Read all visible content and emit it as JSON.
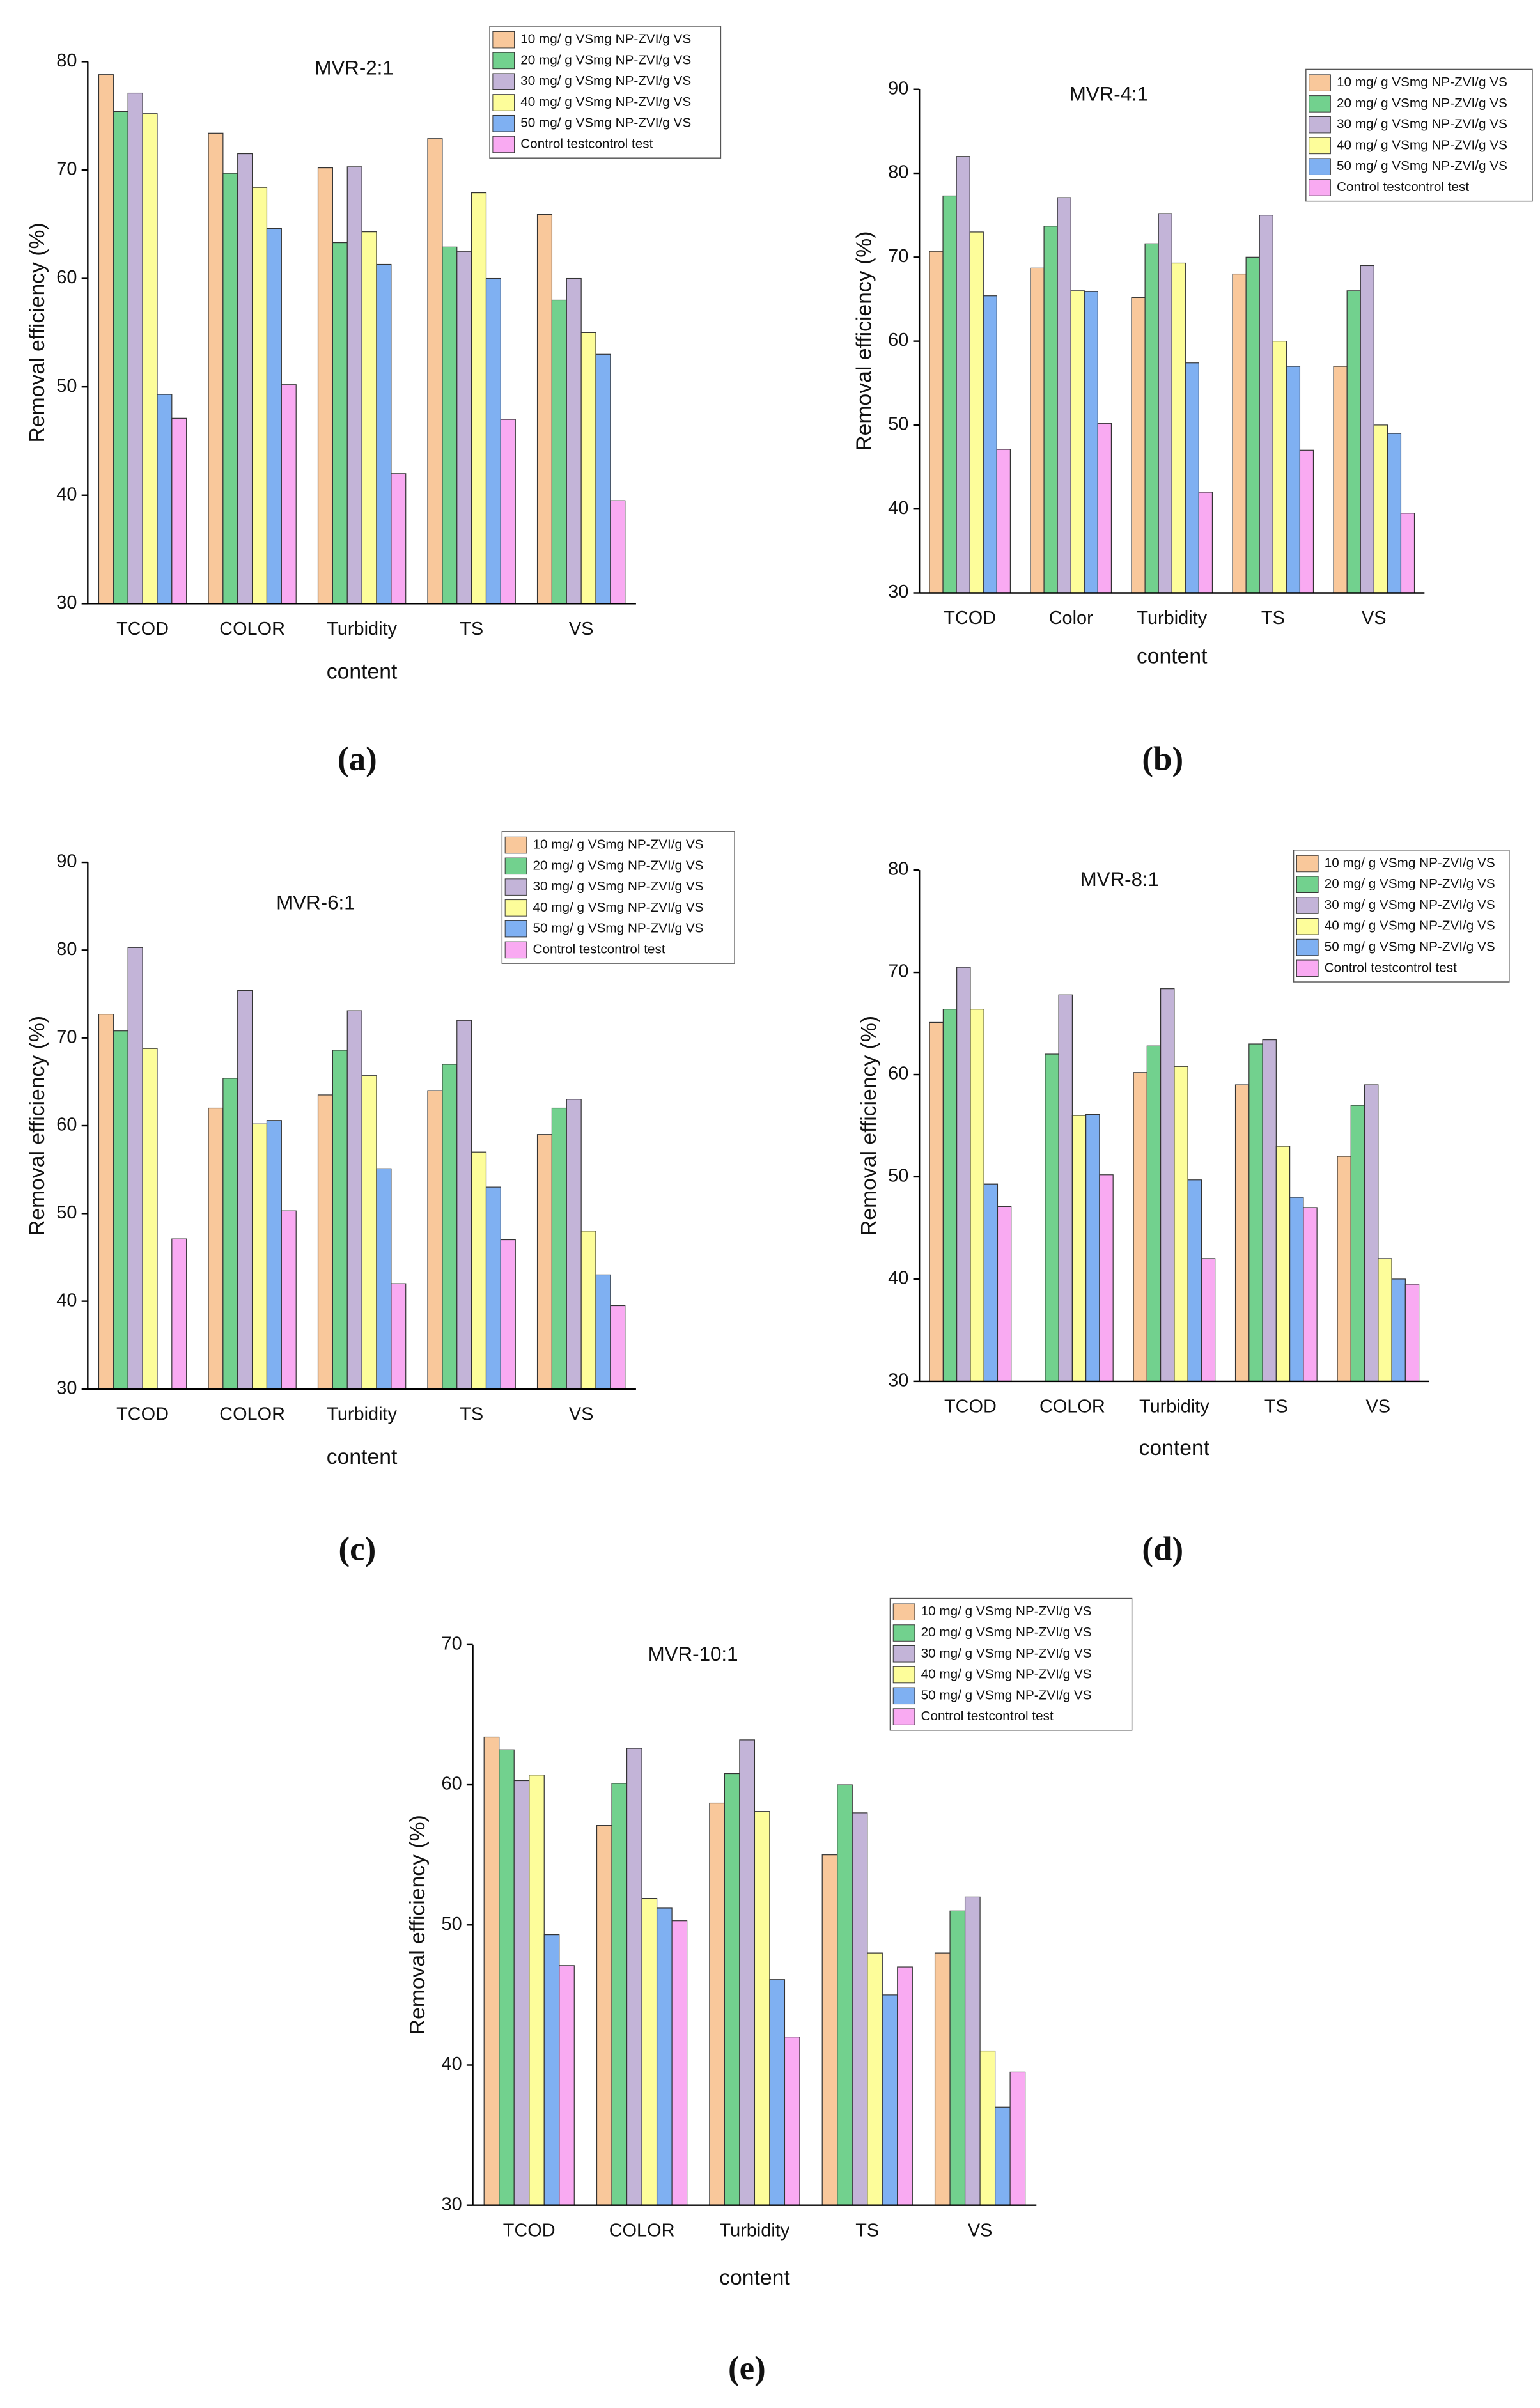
{
  "chart_data": [
    {
      "type": "bar",
      "title": "MVR-2:1",
      "caption": "(a)",
      "x_label": "content",
      "y_label": "Removal efficiency (%)",
      "categories": [
        "TCOD",
        "COLOR",
        "Turbidity",
        "TS",
        "VS"
      ],
      "ylim": [
        30,
        80
      ],
      "yticks": [
        30,
        40,
        50,
        60,
        70,
        80
      ],
      "series": [
        {
          "name": "10 mg/ g VSmg NP-ZVI/g VS",
          "color": "#f9c89b",
          "values": [
            78.8,
            73.4,
            70.2,
            72.9,
            65.9
          ]
        },
        {
          "name": "20 mg/ g VSmg NP-ZVI/g VS",
          "color": "#72d18e",
          "values": [
            75.4,
            69.7,
            63.3,
            62.9,
            58
          ]
        },
        {
          "name": "30 mg/ g VSmg NP-ZVI/g VS",
          "color": "#c3b4d8",
          "values": [
            77.1,
            71.5,
            70.3,
            62.5,
            60
          ]
        },
        {
          "name": "40 mg/ g VSmg NP-ZVI/g VS",
          "color": "#fdfd9a",
          "values": [
            75.2,
            68.4,
            64.3,
            67.9,
            55
          ]
        },
        {
          "name": "50 mg/ g VSmg NP-ZVI/g VS",
          "color": "#7fb0f2",
          "values": [
            49.3,
            64.6,
            61.3,
            60,
            53
          ]
        },
        {
          "name": "Control testcontrol test",
          "color": "#f9aaf2",
          "values": [
            47.1,
            50.2,
            42,
            47,
            39.5
          ]
        }
      ]
    },
    {
      "type": "bar",
      "title": "MVR-4:1",
      "caption": "(b)",
      "x_label": "content",
      "y_label": "Removal efficiency (%)",
      "categories": [
        "TCOD",
        "Color",
        "Turbidity",
        "TS",
        "VS"
      ],
      "ylim": [
        30,
        90
      ],
      "yticks": [
        30,
        40,
        50,
        60,
        70,
        80,
        90
      ],
      "series": [
        {
          "name": "10 mg/ g VSmg NP-ZVI/g VS",
          "color": "#f9c89b",
          "values": [
            70.7,
            68.7,
            65.2,
            68,
            57
          ]
        },
        {
          "name": "20 mg/ g VSmg NP-ZVI/g VS",
          "color": "#72d18e",
          "values": [
            77.3,
            73.7,
            71.6,
            70,
            66
          ]
        },
        {
          "name": "30 mg/ g VSmg NP-ZVI/g VS",
          "color": "#c3b4d8",
          "values": [
            82,
            77.1,
            75.2,
            75,
            69
          ]
        },
        {
          "name": "40 mg/ g VSmg NP-ZVI/g VS",
          "color": "#fdfd9a",
          "values": [
            73,
            66,
            69.3,
            60,
            50
          ]
        },
        {
          "name": "50 mg/ g VSmg NP-ZVI/g VS",
          "color": "#7fb0f2",
          "values": [
            65.4,
            65.9,
            57.4,
            57,
            49
          ]
        },
        {
          "name": "Control testcontrol test",
          "color": "#f9aaf2",
          "values": [
            47.1,
            50.2,
            42,
            47,
            39.5
          ]
        }
      ]
    },
    {
      "type": "bar",
      "title": "MVR-6:1",
      "caption": "(c)",
      "x_label": "content",
      "y_label": "Removal efficiency (%)",
      "categories": [
        "TCOD",
        "COLOR",
        "Turbidity",
        "TS",
        "VS"
      ],
      "ylim": [
        30,
        90
      ],
      "yticks": [
        30,
        40,
        50,
        60,
        70,
        80,
        90
      ],
      "series": [
        {
          "name": "10 mg/ g VSmg NP-ZVI/g VS",
          "color": "#f9c89b",
          "values": [
            72.7,
            62,
            63.5,
            64,
            59
          ]
        },
        {
          "name": "20 mg/ g VSmg NP-ZVI/g VS",
          "color": "#72d18e",
          "values": [
            70.8,
            65.4,
            68.6,
            67,
            62
          ]
        },
        {
          "name": "30 mg/ g VSmg NP-ZVI/g VS",
          "color": "#c3b4d8",
          "values": [
            80.3,
            75.4,
            73.1,
            72,
            63
          ]
        },
        {
          "name": "40 mg/ g VSmg NP-ZVI/g VS",
          "color": "#fdfd9a",
          "values": [
            68.8,
            60.2,
            65.7,
            57,
            48
          ]
        },
        {
          "name": "50 mg/ g VSmg NP-ZVI/g VS",
          "color": "#7fb0f2",
          "values": [
            null,
            60.6,
            55.1,
            53,
            43
          ]
        },
        {
          "name": "Control testcontrol test",
          "color": "#f9aaf2",
          "values": [
            47.1,
            50.3,
            42,
            47,
            39.5
          ]
        }
      ]
    },
    {
      "type": "bar",
      "title": "MVR-8:1",
      "caption": "(d)",
      "x_label": "content",
      "y_label": "Removal efficiency (%)",
      "categories": [
        "TCOD",
        "COLOR",
        "Turbidity",
        "TS",
        "VS"
      ],
      "ylim": [
        30,
        80
      ],
      "yticks": [
        30,
        40,
        50,
        60,
        70,
        80
      ],
      "series": [
        {
          "name": "10 mg/ g VSmg NP-ZVI/g VS",
          "color": "#f9c89b",
          "values": [
            65.1,
            null,
            60.2,
            59,
            52
          ]
        },
        {
          "name": "20 mg/ g VSmg NP-ZVI/g VS",
          "color": "#72d18e",
          "values": [
            66.4,
            62,
            62.8,
            63,
            57
          ]
        },
        {
          "name": "30 mg/ g VSmg NP-ZVI/g VS",
          "color": "#c3b4d8",
          "values": [
            70.5,
            67.8,
            68.4,
            63.4,
            59
          ]
        },
        {
          "name": "40 mg/ g VSmg NP-ZVI/g VS",
          "color": "#fdfd9a",
          "values": [
            66.4,
            56,
            60.8,
            53,
            42
          ]
        },
        {
          "name": "50 mg/ g VSmg NP-ZVI/g VS",
          "color": "#7fb0f2",
          "values": [
            49.3,
            56.1,
            49.7,
            48,
            40
          ]
        },
        {
          "name": "Control testcontrol test",
          "color": "#f9aaf2",
          "values": [
            47.1,
            50.2,
            42,
            47,
            39.5
          ]
        }
      ]
    },
    {
      "type": "bar",
      "title": "MVR-10:1",
      "caption": "(e)",
      "x_label": "content",
      "y_label": "Removal efficiency (%)",
      "categories": [
        "TCOD",
        "COLOR",
        "Turbidity",
        "TS",
        "VS"
      ],
      "ylim": [
        30,
        70
      ],
      "yticks": [
        30,
        40,
        50,
        60,
        70
      ],
      "series": [
        {
          "name": "10 mg/ g VSmg NP-ZVI/g VS",
          "color": "#f9c89b",
          "values": [
            63.4,
            57.1,
            58.7,
            55,
            48
          ]
        },
        {
          "name": "20 mg/ g VSmg NP-ZVI/g VS",
          "color": "#72d18e",
          "values": [
            62.5,
            60.1,
            60.8,
            60,
            51
          ]
        },
        {
          "name": "30 mg/ g VSmg NP-ZVI/g VS",
          "color": "#c3b4d8",
          "values": [
            60.3,
            62.6,
            63.2,
            58,
            52
          ]
        },
        {
          "name": "40 mg/ g VSmg NP-ZVI/g VS",
          "color": "#fdfd9a",
          "values": [
            60.7,
            51.9,
            58.1,
            48,
            41
          ]
        },
        {
          "name": "50 mg/ g VSmg NP-ZVI/g VS",
          "color": "#7fb0f2",
          "values": [
            49.3,
            51.2,
            46.1,
            45,
            37
          ]
        },
        {
          "name": "Control testcontrol test",
          "color": "#f9aaf2",
          "values": [
            47.1,
            50.3,
            42,
            47,
            39.5
          ]
        }
      ]
    }
  ]
}
